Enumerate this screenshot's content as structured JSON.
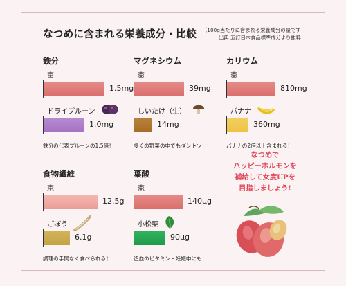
{
  "title": "なつめに含まれる栄養成分・比較",
  "note": {
    "line1": "（100g当たりに含まれる栄養成分の量です",
    "line2": "出典 五訂日本食品標準成分より抜粋"
  },
  "promo": {
    "line1": "なつめで",
    "line2": "ハッピーホルモンを",
    "line3": "補給して女度UPを",
    "line4": "目指しましょう!"
  },
  "colors": {
    "jujube": "#d96f6d",
    "prune": "#a472c4",
    "shiitake": "#a86c27",
    "banana": "#eec145",
    "burdock": "#c5a345",
    "komatsuna": "#1f9a4b",
    "promo_text": "#e0475a"
  },
  "chart_data": [
    {
      "type": "bar",
      "title": "鉄分",
      "categories": [
        "棗",
        "ドライプルーン"
      ],
      "series": [
        {
          "values": [
            1.5,
            1.0
          ]
        }
      ],
      "value_labels": [
        "1.5mg",
        "1.0mg"
      ],
      "unit": "mg",
      "caption": "鉄分の代表プルーンの1.5倍！"
    },
    {
      "type": "bar",
      "title": "マグネシウム",
      "categories": [
        "棗",
        "しいたけ（生）"
      ],
      "series": [
        {
          "values": [
            39,
            14
          ]
        }
      ],
      "value_labels": [
        "39mg",
        "14mg"
      ],
      "unit": "mg",
      "caption": "多くの野菜の中でもダントツ！"
    },
    {
      "type": "bar",
      "title": "カリウム",
      "categories": [
        "棗",
        "バナナ"
      ],
      "series": [
        {
          "values": [
            810,
            360
          ]
        }
      ],
      "value_labels": [
        "810mg",
        "360mg"
      ],
      "unit": "mg",
      "caption": "バナナの2倍以上含まれる！"
    },
    {
      "type": "bar",
      "title": "食物繊維",
      "categories": [
        "棗",
        "ごぼう"
      ],
      "series": [
        {
          "values": [
            12.5,
            6.1
          ]
        }
      ],
      "value_labels": [
        "12.5g",
        "6.1g"
      ],
      "unit": "g",
      "caption": "調理の手間なく食べられる！"
    },
    {
      "type": "bar",
      "title": "葉酸",
      "categories": [
        "棗",
        "小松菜"
      ],
      "series": [
        {
          "values": [
            140,
            90
          ]
        }
      ],
      "value_labels": [
        "140μg",
        "90μg"
      ],
      "unit": "μg",
      "caption": "造血のビタミン・妊娠中にも！"
    }
  ]
}
